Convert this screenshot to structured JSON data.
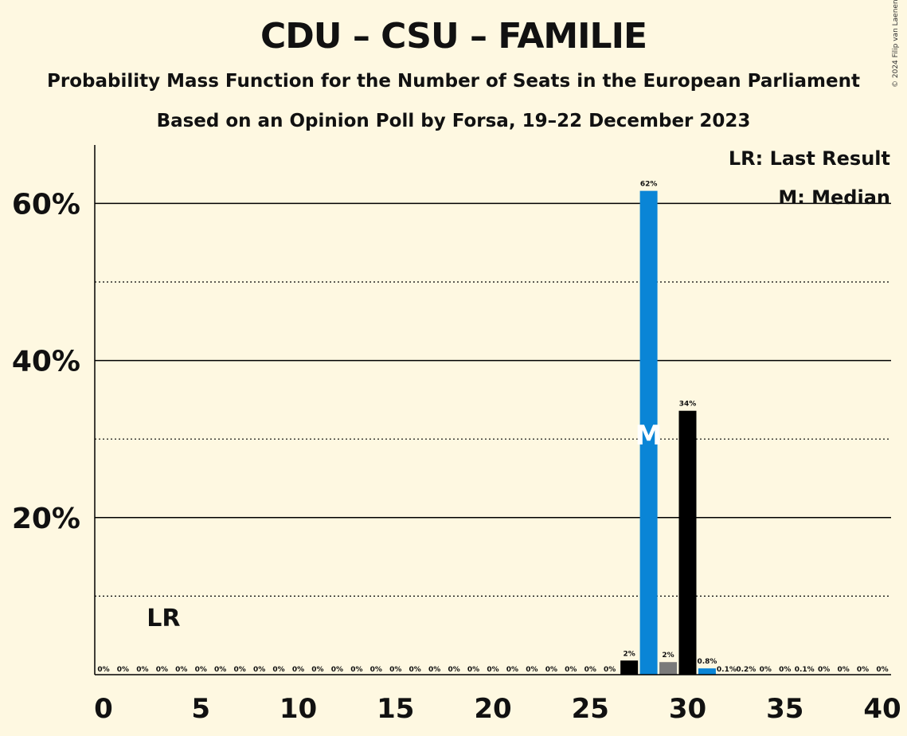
{
  "title": "CDU – CSU – FAMILIE",
  "subtitle": "Probability Mass Function for the Number of Seats in the European Parliament",
  "subtitle2": "Based on an Opinion Poll by Forsa, 19–22 December 2023",
  "copyright": "© 2024 Filip van Laenen",
  "legend": {
    "last_result": "LR: Last Result",
    "median": "M: Median"
  },
  "markers": {
    "last_result_label": "LR",
    "last_result_seat": 3,
    "median_label": "M",
    "median_seat": 28
  },
  "colors": {
    "background": "#fef8e1",
    "primary": "#0a85d6",
    "black": "#000000",
    "grey": "#7a7a7a"
  },
  "chart_data": {
    "type": "bar",
    "x": [
      0,
      1,
      2,
      3,
      4,
      5,
      6,
      7,
      8,
      9,
      10,
      11,
      12,
      13,
      14,
      15,
      16,
      17,
      18,
      19,
      20,
      21,
      22,
      23,
      24,
      25,
      26,
      27,
      28,
      29,
      30,
      31,
      32,
      33,
      34,
      35,
      36,
      37,
      38,
      39,
      40
    ],
    "values": [
      0,
      0,
      0,
      0,
      0,
      0,
      0,
      0,
      0,
      0,
      0,
      0,
      0,
      0,
      0,
      0,
      0,
      0,
      0,
      0,
      0,
      0,
      0,
      0,
      0,
      0,
      0,
      1.8,
      61.6,
      1.6,
      33.6,
      0.8,
      0.1,
      0.2,
      0,
      0,
      0.1,
      0,
      0,
      0,
      0
    ],
    "labels": [
      "0%",
      "0%",
      "0%",
      "0%",
      "0%",
      "0%",
      "0%",
      "0%",
      "0%",
      "0%",
      "0%",
      "0%",
      "0%",
      "0%",
      "0%",
      "0%",
      "0%",
      "0%",
      "0%",
      "0%",
      "0%",
      "0%",
      "0%",
      "0%",
      "0%",
      "0%",
      "0%",
      "2%",
      "62%",
      "2%",
      "34%",
      "0.8%",
      "0.1%",
      "0.2%",
      "0%",
      "0%",
      "0.1%",
      "0%",
      "0%",
      "0%",
      "0%"
    ],
    "bar_colors": {
      "27": "black",
      "28": "primary",
      "29": "grey",
      "30": "black",
      "31": "primary"
    },
    "x_ticks": [
      0,
      5,
      10,
      15,
      20,
      25,
      30,
      35,
      40
    ],
    "x_tick_labels": [
      "0",
      "5",
      "10",
      "15",
      "20",
      "25",
      "30",
      "35",
      "40"
    ],
    "y_ticks": [
      20,
      40,
      60
    ],
    "y_tick_labels": [
      "20%",
      "40%",
      "60%"
    ],
    "y_minor_ticks": [
      10,
      30,
      50
    ],
    "ylim": [
      0,
      67
    ],
    "xlim": [
      0,
      40
    ],
    "grid": true
  }
}
